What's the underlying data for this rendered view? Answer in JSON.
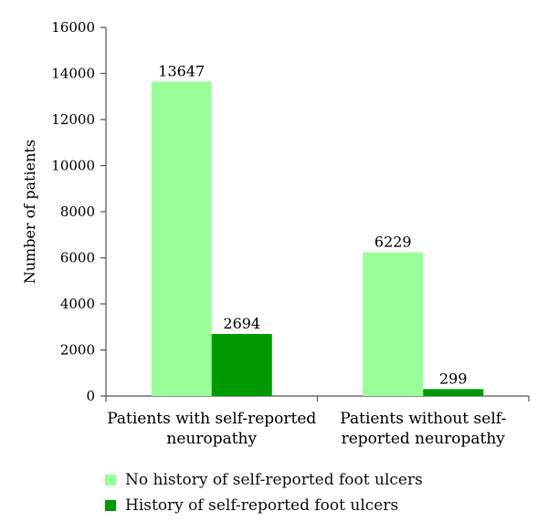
{
  "chart_data": {
    "type": "bar",
    "title": "",
    "xlabel": "",
    "ylabel": "Number of patients",
    "ylim": [
      0,
      16000
    ],
    "yticks": [
      0,
      2000,
      4000,
      6000,
      8000,
      10000,
      12000,
      14000,
      16000
    ],
    "categories": [
      [
        "Patients with self-reported",
        "neuropathy"
      ],
      [
        "Patients without self-",
        "reported neuropathy"
      ]
    ],
    "series": [
      {
        "name": "No history of self-reported foot ulcers",
        "color": "#99ff99",
        "values": [
          13647,
          6229
        ]
      },
      {
        "name": "History of self-reported foot ulcers",
        "color": "#009900",
        "values": [
          2694,
          299
        ]
      }
    ],
    "legend_position": "bottom-left",
    "grid": false
  }
}
